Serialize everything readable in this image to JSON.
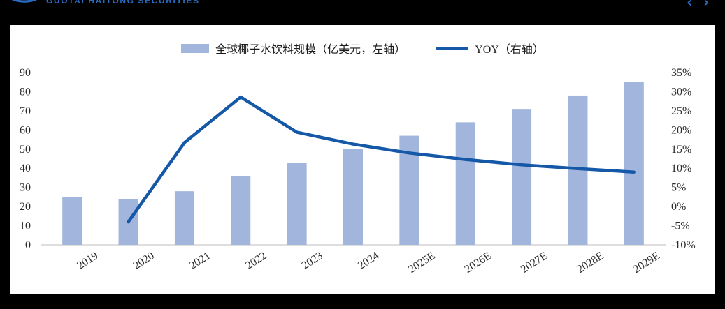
{
  "header": {
    "logo_text": "GUOTAI HAITONG SECURITIES",
    "brand_color": "#2b6cc1",
    "icons": {
      "chevron_left": "‹",
      "chevron_right": "›"
    }
  },
  "chart_data": {
    "type": "bar",
    "subtype": "bar+line combo, dual axis",
    "categories": [
      "2019",
      "2020",
      "2021",
      "2022",
      "2023",
      "2024",
      "2025E",
      "2026E",
      "2027E",
      "2028E",
      "2029E"
    ],
    "series": [
      {
        "name": "全球椰子水饮料规模（亿美元，左轴）",
        "type": "bar",
        "axis": "left",
        "color": "#a2b5dd",
        "values": [
          25,
          24,
          28,
          36,
          43,
          50,
          57,
          64,
          71,
          78,
          85
        ]
      },
      {
        "name": "YOY（右轴）",
        "type": "line",
        "axis": "right",
        "color": "#1558a7",
        "values": [
          null,
          -4.0,
          16.7,
          28.6,
          19.4,
          16.3,
          14.0,
          12.3,
          10.9,
          9.9,
          9.0
        ]
      }
    ],
    "left_axis": {
      "min": 0,
      "max": 90,
      "step": 10,
      "labels": [
        "0",
        "10",
        "20",
        "30",
        "40",
        "50",
        "60",
        "70",
        "80",
        "90"
      ]
    },
    "right_axis": {
      "min": -10,
      "max": 35,
      "step": 5,
      "labels": [
        "-10%",
        "-5%",
        "0%",
        "5%",
        "10%",
        "15%",
        "20%",
        "25%",
        "30%",
        "35%"
      ]
    },
    "grid": false,
    "legend_position": "top-center",
    "title": ""
  }
}
